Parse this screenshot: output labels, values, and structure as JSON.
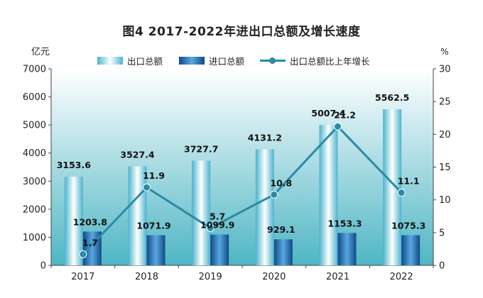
{
  "title": "图4   2017-2022年进出口总额及增长速度",
  "chart_data": {
    "type": "bar",
    "title": "图4   2017-2022年进出口总额及增长速度",
    "categories": [
      "2017",
      "2018",
      "2019",
      "2020",
      "2021",
      "2022"
    ],
    "series": [
      {
        "name": "出口总额",
        "type": "bar",
        "axis": "left",
        "values": [
          3153.6,
          3527.4,
          3727.7,
          4131.2,
          5007.4,
          5562.5
        ],
        "labels": [
          "3153.6",
          "3527.4",
          "3727.7",
          "4131.2",
          "5007.4",
          "5562.5"
        ]
      },
      {
        "name": "进口总额",
        "type": "bar",
        "axis": "left",
        "values": [
          1203.8,
          1071.9,
          1099.9,
          929.1,
          1153.3,
          1075.3
        ],
        "labels": [
          "1203.8",
          "1071.9",
          "1099.9",
          "929.1",
          "1153.3",
          "1075.3"
        ]
      },
      {
        "name": "出口总额比上年增长",
        "type": "line",
        "axis": "right",
        "values": [
          1.7,
          11.9,
          5.7,
          10.8,
          21.2,
          11.1
        ],
        "labels": [
          "1.7",
          "11.9",
          "5.7",
          "10.8",
          "21.2",
          "11.1"
        ]
      }
    ],
    "ylabel_left": "亿元",
    "ylabel_right": "%",
    "ylim_left": [
      0,
      7000
    ],
    "ylim_right": [
      0,
      30
    ],
    "yticks_left": [
      "0",
      "1000",
      "2000",
      "3000",
      "4000",
      "5000",
      "6000",
      "7000"
    ],
    "yticks_right": [
      "0",
      "5",
      "10",
      "15",
      "20",
      "25",
      "30"
    ],
    "legend_position": "top",
    "grid": false,
    "colors": {
      "export_edge": "#4ab3cc",
      "export_center": "#ffffff",
      "import_edge": "#0f4a87",
      "import_center": "#5aa7e0",
      "line": "#2a8aa6",
      "plot_top": "#ffffff",
      "plot_bottom": "#4fb6c4"
    }
  }
}
